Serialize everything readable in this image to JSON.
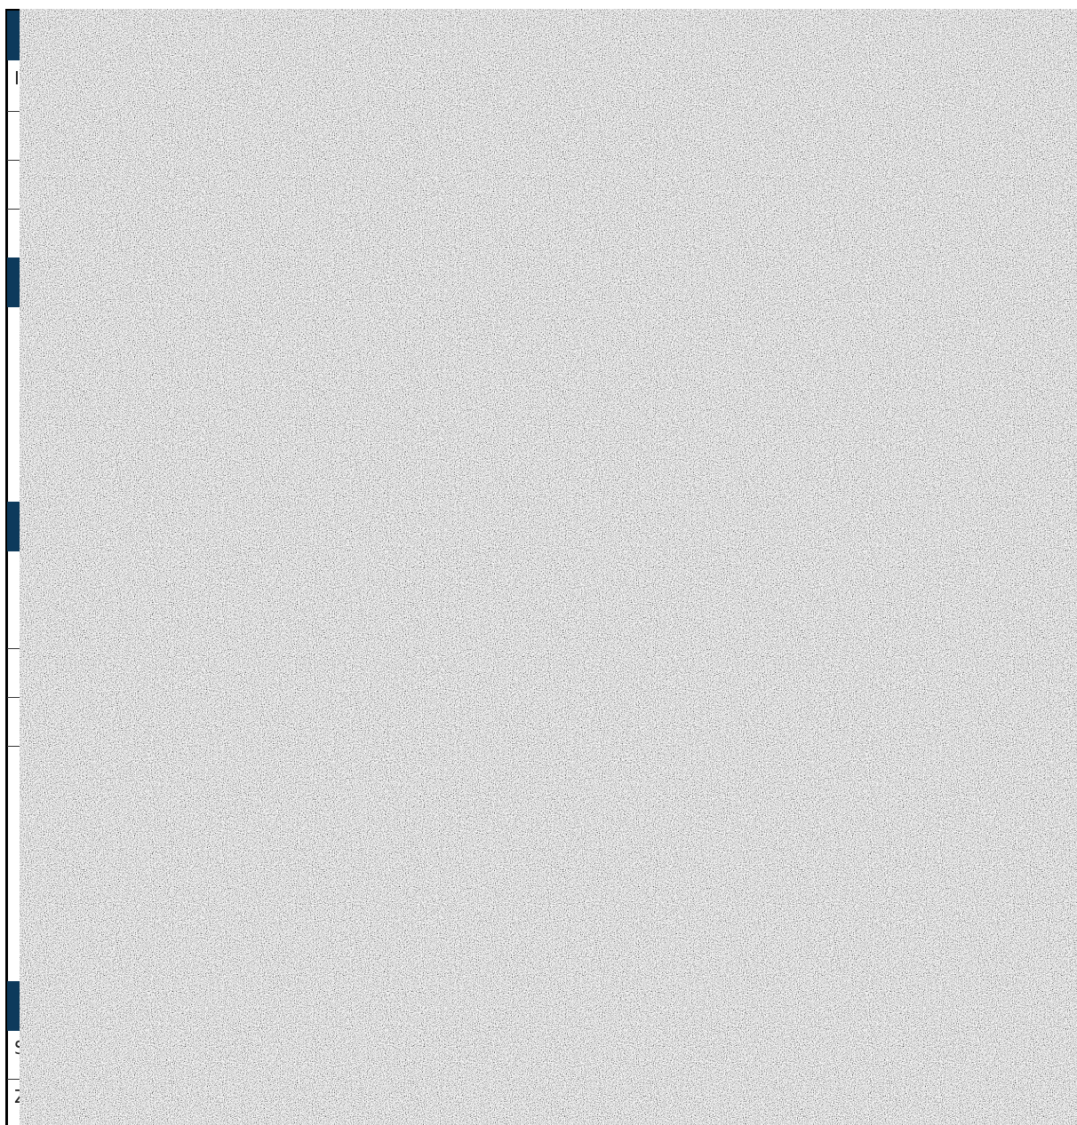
{
  "fragments": [
    "I",
    "S",
    "Z"
  ]
}
